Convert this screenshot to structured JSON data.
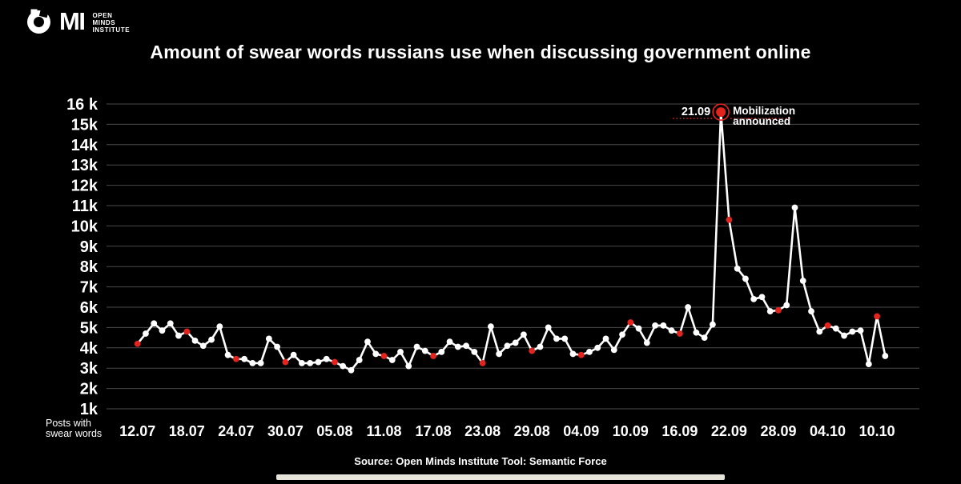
{
  "logo": {
    "text": "MI",
    "subtitle_lines": [
      "OPEN",
      "MINDS",
      "INSTITUTE"
    ]
  },
  "title": "Amount of swear words russians use when discussing government online",
  "y_axis_caption_lines": [
    "Posts with",
    "swear words"
  ],
  "source": "Source: Open Minds Institute  Tool: Semantic Force",
  "annotation": {
    "date_label": "21.09",
    "text_line1": "Mobilization",
    "text_line2": "announced"
  },
  "colors": {
    "background": "#000000",
    "line": "#ffffff",
    "marker_white": "#ffffff",
    "marker_red": "#e2241f",
    "grid": "#4a4a4a",
    "text": "#ffffff",
    "bottom_bar": "#e6e3db"
  },
  "chart_data": {
    "type": "line",
    "title": "Amount of swear words russians use when discussing government online",
    "ylabel": "Posts with swear words",
    "xlabel": "",
    "grid": "horizontal",
    "legend": "none",
    "ylim": [
      1000,
      16000
    ],
    "y_ticks": [
      "16 k",
      "15k",
      "14k",
      "13k",
      "12k",
      "11k",
      "10k",
      "9k",
      "8k",
      "7k",
      "6k",
      "5k",
      "4k",
      "3k",
      "2k",
      "1k"
    ],
    "y_tick_values": [
      16000,
      15000,
      14000,
      13000,
      12000,
      11000,
      10000,
      9000,
      8000,
      7000,
      6000,
      5000,
      4000,
      3000,
      2000,
      1000
    ],
    "x_tick_labels": [
      "12.07",
      "18.07",
      "24.07",
      "30.07",
      "05.08",
      "11.08",
      "17.08",
      "23.08",
      "29.08",
      "04.09",
      "10.09",
      "16.09",
      "22.09",
      "28.09",
      "04.10",
      "10.10"
    ],
    "red_marker_every_n_days": 6,
    "annotated_point": {
      "date": "21.09",
      "value": 15600,
      "label": "Mobilization announced"
    },
    "x": [
      "12.07",
      "13.07",
      "14.07",
      "15.07",
      "16.07",
      "17.07",
      "18.07",
      "19.07",
      "20.07",
      "21.07",
      "22.07",
      "23.07",
      "24.07",
      "25.07",
      "26.07",
      "27.07",
      "28.07",
      "29.07",
      "30.07",
      "31.07",
      "01.08",
      "02.08",
      "03.08",
      "04.08",
      "05.08",
      "06.08",
      "07.08",
      "08.08",
      "09.08",
      "10.08",
      "11.08",
      "12.08",
      "13.08",
      "14.08",
      "15.08",
      "16.08",
      "17.08",
      "18.08",
      "19.08",
      "20.08",
      "21.08",
      "22.08",
      "23.08",
      "24.08",
      "25.08",
      "26.08",
      "27.08",
      "28.08",
      "29.08",
      "30.08",
      "31.08",
      "01.09",
      "02.09",
      "03.09",
      "04.09",
      "05.09",
      "06.09",
      "07.09",
      "08.09",
      "09.09",
      "10.09",
      "11.09",
      "12.09",
      "13.09",
      "14.09",
      "15.09",
      "16.09",
      "17.09",
      "18.09",
      "19.09",
      "20.09",
      "21.09",
      "22.09",
      "23.09",
      "24.09",
      "25.09",
      "26.09",
      "27.09",
      "28.09",
      "29.09",
      "30.09",
      "01.10",
      "02.10",
      "03.10",
      "04.10",
      "05.10",
      "06.10",
      "07.10",
      "08.10",
      "09.10",
      "10.10",
      "11.10"
    ],
    "values": [
      4200,
      4700,
      5200,
      4850,
      5200,
      4600,
      4800,
      4350,
      4100,
      4400,
      5050,
      3650,
      3450,
      3450,
      3250,
      3250,
      4450,
      4050,
      3300,
      3650,
      3250,
      3250,
      3300,
      3450,
      3300,
      3100,
      2900,
      3400,
      4300,
      3700,
      3600,
      3400,
      3800,
      3100,
      4050,
      3850,
      3600,
      3800,
      4300,
      4050,
      4100,
      3800,
      3250,
      5050,
      3700,
      4100,
      4250,
      4650,
      3850,
      4050,
      5000,
      4450,
      4450,
      3700,
      3650,
      3800,
      4000,
      4450,
      3900,
      4650,
      5250,
      4950,
      4250,
      5100,
      5100,
      4850,
      4700,
      6000,
      4750,
      4500,
      5150,
      15600,
      10300,
      7900,
      7400,
      6400,
      6500,
      5800,
      5850,
      6100,
      10900,
      7300,
      5800,
      4800,
      5100,
      4950,
      4600,
      4800,
      4850,
      3200,
      5550,
      3600
    ]
  }
}
